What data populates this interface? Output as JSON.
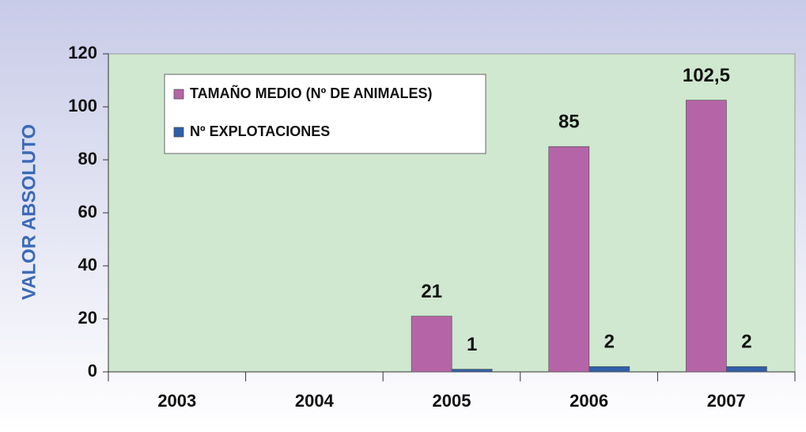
{
  "chart_data": {
    "type": "bar",
    "y_label": "VALOR ABSOLUTO",
    "categories": [
      "2003",
      "2004",
      "2005",
      "2006",
      "2007"
    ],
    "series": [
      {
        "name": "TAMAÑO MEDIO (Nº DE ANIMALES)",
        "color": "#b565a7",
        "values": [
          null,
          null,
          21,
          85,
          102.5
        ],
        "value_labels": [
          null,
          null,
          "21",
          "85",
          "102,5"
        ]
      },
      {
        "name": "Nº EXPLOTACIONES",
        "color": "#2f5fa8",
        "values": [
          null,
          null,
          1,
          2,
          2
        ]
      }
    ],
    "ylim": [
      0,
      120
    ],
    "yticks": [
      0,
      20,
      40,
      60,
      80,
      100,
      120
    ],
    "legend": "upper left"
  }
}
